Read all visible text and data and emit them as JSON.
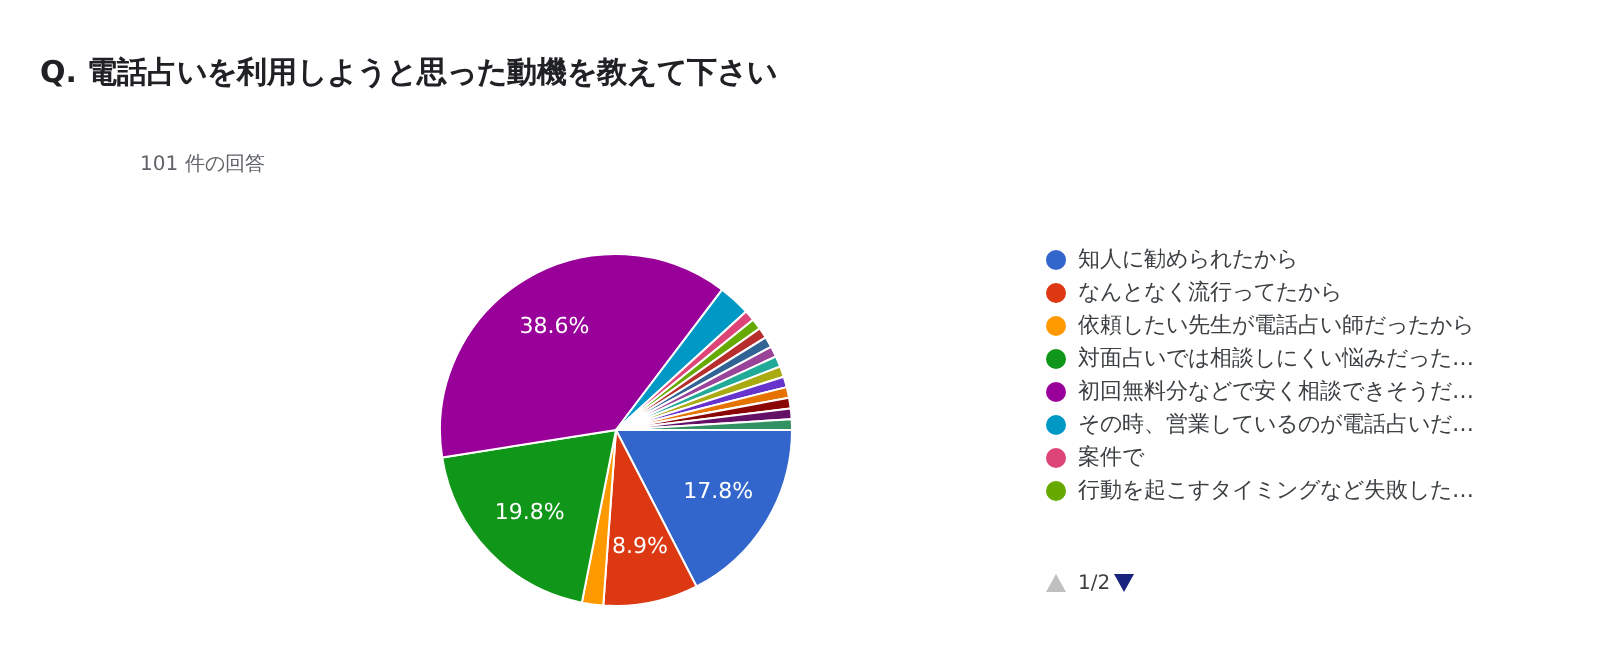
{
  "chart_data": {
    "type": "pie",
    "title": "Q. 電話占いを利用しようと思った動機を教えて下さい",
    "subtitle": "101 件の回答",
    "categories": [
      "知人に勧められたから",
      "なんとなく流行ってたから",
      "依頼したい先生が電話占い師だったから",
      "対面占いでは相談しにくい悩みだった…",
      "初回無料分などで安く相談できそうだ…",
      "その時、営業しているのが電話占いだ…",
      "案件で",
      "行動を起こすタイミングなど失敗した…",
      null,
      null,
      null,
      null,
      null,
      null,
      null,
      null,
      null,
      null
    ],
    "values": [
      17.8,
      8.9,
      2,
      19.8,
      38.6,
      3,
      1,
      1,
      1,
      1,
      1,
      1,
      1,
      1,
      1,
      1,
      1,
      1
    ],
    "value_labels": [
      "17.8%",
      "8.9%",
      null,
      "19.8%",
      "38.6%",
      null,
      null,
      null,
      null,
      null,
      null,
      null,
      null,
      null,
      null,
      null,
      null,
      null
    ],
    "colors": [
      "#3366cc",
      "#dc3912",
      "#ff9900",
      "#109618",
      "#990099",
      "#0099c6",
      "#dd4477",
      "#66aa00",
      "#b82e2e",
      "#316395",
      "#994499",
      "#22aa99",
      "#aaaa11",
      "#6633cc",
      "#e67300",
      "#8b0707",
      "#651067",
      "#329262"
    ],
    "legend": "right",
    "annotations": [
      "1/2"
    ]
  }
}
